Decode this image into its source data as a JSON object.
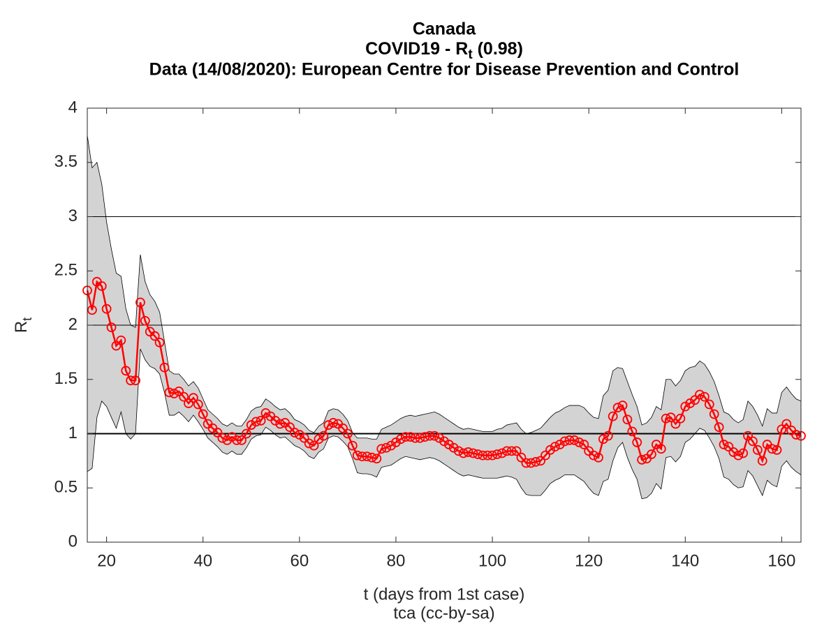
{
  "chart_data": {
    "type": "line",
    "title": "Canada",
    "subtitle": [
      "COVID19 - R",
      "t",
      " (0.98)"
    ],
    "subtitle2": "Data (14/08/2020): European Centre for Disease Prevention and Control",
    "xlabel": "t (days from 1st case)",
    "caption": "tca (cc-by-sa)",
    "ylabel": [
      "R",
      "t"
    ],
    "xlim": [
      16,
      164
    ],
    "ylim": [
      0,
      4
    ],
    "xticks": [
      20,
      40,
      60,
      80,
      100,
      120,
      140,
      160
    ],
    "yticks": [
      0,
      0.5,
      1,
      1.5,
      2,
      2.5,
      3,
      3.5,
      4
    ],
    "hlines": [
      1,
      2,
      3
    ],
    "x": [
      16,
      17,
      18,
      19,
      20,
      21,
      22,
      23,
      24,
      25,
      26,
      27,
      28,
      29,
      30,
      31,
      32,
      33,
      34,
      35,
      36,
      37,
      38,
      39,
      40,
      41,
      42,
      43,
      44,
      45,
      46,
      47,
      48,
      49,
      50,
      51,
      52,
      53,
      54,
      55,
      56,
      57,
      58,
      59,
      60,
      61,
      62,
      63,
      64,
      65,
      66,
      67,
      68,
      69,
      70,
      71,
      72,
      73,
      74,
      75,
      76,
      77,
      78,
      79,
      80,
      81,
      82,
      83,
      84,
      85,
      86,
      87,
      88,
      89,
      90,
      91,
      92,
      93,
      94,
      95,
      96,
      97,
      98,
      99,
      100,
      101,
      102,
      103,
      104,
      105,
      106,
      107,
      108,
      109,
      110,
      111,
      112,
      113,
      114,
      115,
      116,
      117,
      118,
      119,
      120,
      121,
      122,
      123,
      124,
      125,
      126,
      127,
      128,
      129,
      130,
      131,
      132,
      133,
      134,
      135,
      136,
      137,
      138,
      139,
      140,
      141,
      142,
      143,
      144,
      145,
      146,
      147,
      148,
      149,
      150,
      151,
      152,
      153,
      154,
      155,
      156,
      157,
      158,
      159,
      160,
      161,
      162,
      163,
      164
    ],
    "band": {
      "color": "#d3d3d3",
      "upper": [
        3.75,
        3.45,
        3.5,
        3.3,
        2.95,
        2.7,
        2.48,
        2.45,
        2.15,
        2.0,
        1.98,
        2.65,
        2.4,
        2.28,
        2.22,
        2.12,
        1.85,
        1.58,
        1.55,
        1.55,
        1.5,
        1.44,
        1.48,
        1.42,
        1.32,
        1.22,
        1.18,
        1.14,
        1.09,
        1.07,
        1.1,
        1.07,
        1.07,
        1.13,
        1.21,
        1.24,
        1.25,
        1.32,
        1.29,
        1.25,
        1.22,
        1.23,
        1.19,
        1.13,
        1.11,
        1.08,
        1.03,
        1.01,
        1.07,
        1.1,
        1.21,
        1.23,
        1.22,
        1.18,
        1.12,
        1.01,
        0.96,
        0.96,
        0.96,
        0.95,
        0.95,
        1.04,
        1.06,
        1.08,
        1.11,
        1.14,
        1.16,
        1.17,
        1.16,
        1.17,
        1.18,
        1.19,
        1.2,
        1.18,
        1.15,
        1.12,
        1.09,
        1.06,
        1.04,
        1.05,
        1.04,
        1.03,
        1.02,
        1.02,
        1.02,
        1.04,
        1.05,
        1.08,
        1.09,
        1.1,
        1.04,
        1.0,
        1.01,
        1.03,
        1.05,
        1.1,
        1.15,
        1.19,
        1.21,
        1.24,
        1.26,
        1.26,
        1.26,
        1.24,
        1.19,
        1.15,
        1.14,
        1.35,
        1.4,
        1.58,
        1.61,
        1.6,
        1.48,
        1.36,
        1.25,
        1.08,
        1.1,
        1.15,
        1.25,
        1.22,
        1.5,
        1.5,
        1.44,
        1.49,
        1.58,
        1.61,
        1.62,
        1.67,
        1.64,
        1.57,
        1.48,
        1.35,
        1.2,
        1.18,
        1.13,
        1.1,
        1.13,
        1.3,
        1.25,
        1.17,
        1.07,
        1.23,
        1.19,
        1.19,
        1.38,
        1.43,
        1.37,
        1.32,
        1.3
      ],
      "lower": [
        0.65,
        0.68,
        1.15,
        1.3,
        1.25,
        1.15,
        1.05,
        1.2,
        1.0,
        0.95,
        1.0,
        1.78,
        1.68,
        1.62,
        1.6,
        1.55,
        1.38,
        1.17,
        1.17,
        1.2,
        1.16,
        1.11,
        1.17,
        1.11,
        1.04,
        0.96,
        0.92,
        0.88,
        0.83,
        0.81,
        0.84,
        0.81,
        0.81,
        0.87,
        0.95,
        0.98,
        0.99,
        1.06,
        1.03,
        0.99,
        0.96,
        0.97,
        0.93,
        0.89,
        0.87,
        0.84,
        0.79,
        0.77,
        0.83,
        0.86,
        0.96,
        0.98,
        0.97,
        0.93,
        0.88,
        0.77,
        0.64,
        0.63,
        0.63,
        0.62,
        0.6,
        0.69,
        0.7,
        0.71,
        0.74,
        0.77,
        0.79,
        0.78,
        0.77,
        0.76,
        0.77,
        0.78,
        0.77,
        0.75,
        0.72,
        0.69,
        0.66,
        0.63,
        0.61,
        0.62,
        0.61,
        0.6,
        0.59,
        0.59,
        0.59,
        0.59,
        0.6,
        0.61,
        0.6,
        0.58,
        0.5,
        0.44,
        0.43,
        0.43,
        0.43,
        0.48,
        0.54,
        0.57,
        0.59,
        0.62,
        0.62,
        0.62,
        0.59,
        0.56,
        0.5,
        0.45,
        0.43,
        0.56,
        0.58,
        0.75,
        0.87,
        0.92,
        0.78,
        0.67,
        0.58,
        0.4,
        0.41,
        0.45,
        0.54,
        0.49,
        0.78,
        0.79,
        0.74,
        0.79,
        0.92,
        0.95,
        1.0,
        1.05,
        1.03,
        0.96,
        0.88,
        0.77,
        0.6,
        0.58,
        0.53,
        0.5,
        0.51,
        0.66,
        0.61,
        0.52,
        0.43,
        0.57,
        0.53,
        0.51,
        0.7,
        0.75,
        0.69,
        0.65,
        0.62
      ]
    },
    "series": [
      {
        "color": "#ff0000",
        "values": [
          2.32,
          2.14,
          2.4,
          2.36,
          2.15,
          1.98,
          1.81,
          1.86,
          1.58,
          1.49,
          1.49,
          2.21,
          2.04,
          1.94,
          1.9,
          1.84,
          1.61,
          1.38,
          1.37,
          1.39,
          1.34,
          1.28,
          1.33,
          1.27,
          1.18,
          1.09,
          1.05,
          1.01,
          0.96,
          0.94,
          0.97,
          0.94,
          0.94,
          1.0,
          1.08,
          1.11,
          1.12,
          1.19,
          1.16,
          1.12,
          1.09,
          1.1,
          1.06,
          1.01,
          0.99,
          0.96,
          0.91,
          0.89,
          0.95,
          0.98,
          1.08,
          1.1,
          1.09,
          1.05,
          1.0,
          0.89,
          0.8,
          0.79,
          0.79,
          0.78,
          0.77,
          0.86,
          0.87,
          0.89,
          0.92,
          0.95,
          0.97,
          0.97,
          0.96,
          0.96,
          0.97,
          0.98,
          0.98,
          0.96,
          0.93,
          0.9,
          0.87,
          0.84,
          0.82,
          0.83,
          0.82,
          0.81,
          0.8,
          0.8,
          0.8,
          0.81,
          0.82,
          0.84,
          0.84,
          0.84,
          0.78,
          0.73,
          0.73,
          0.74,
          0.75,
          0.8,
          0.85,
          0.88,
          0.9,
          0.93,
          0.94,
          0.94,
          0.92,
          0.9,
          0.84,
          0.8,
          0.78,
          0.95,
          0.98,
          1.16,
          1.24,
          1.26,
          1.13,
          1.02,
          0.92,
          0.76,
          0.77,
          0.81,
          0.9,
          0.86,
          1.14,
          1.15,
          1.09,
          1.14,
          1.25,
          1.28,
          1.31,
          1.36,
          1.34,
          1.27,
          1.18,
          1.06,
          0.9,
          0.88,
          0.83,
          0.8,
          0.82,
          0.98,
          0.93,
          0.85,
          0.75,
          0.9,
          0.86,
          0.85,
          1.04,
          1.09,
          1.03,
          0.99,
          0.98
        ]
      }
    ]
  }
}
